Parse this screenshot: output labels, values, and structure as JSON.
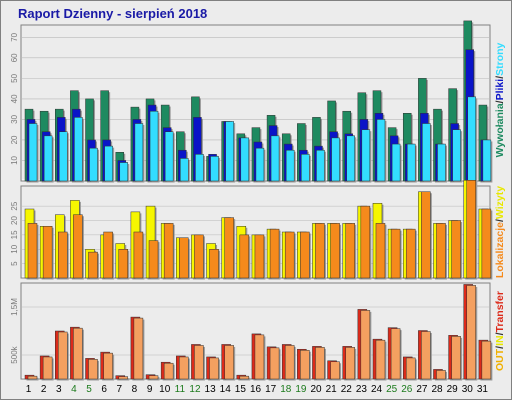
{
  "title": "Raport Dzienny -  sierpień 2018",
  "colors": {
    "wywolania": "#1e8a60",
    "pliki": "#0a14c8",
    "strony": "#33ddff",
    "wizyty": "#f6f600",
    "lokalizacje": "#f58a1c",
    "transfer_dark": "#dc2a1a",
    "transfer_light": "#f4a060",
    "in_color": "#f6a000",
    "out_color": "#f0b000"
  },
  "side_labels": {
    "top": [
      {
        "text": "Wywołania",
        "color": "#1e8a60"
      },
      {
        "text": "/",
        "color": "#333333"
      },
      {
        "text": "Pliki",
        "color": "#0a14c8"
      },
      {
        "text": "/",
        "color": "#333333"
      },
      {
        "text": "Strony",
        "color": "#33ddff"
      }
    ],
    "mid": [
      {
        "text": "Lokalizacje",
        "color": "#f58a1c"
      },
      {
        "text": "/",
        "color": "#333333"
      },
      {
        "text": "Wizyty",
        "color": "#e8e800"
      }
    ],
    "bot": [
      {
        "text": "OUT",
        "color": "#f0b000"
      },
      {
        "text": "/",
        "color": "#333333"
      },
      {
        "text": "IN",
        "color": "#e8e800"
      },
      {
        "text": "/",
        "color": "#333333"
      },
      {
        "text": "Transfer",
        "color": "#dc2a1a"
      }
    ]
  },
  "chart_data": [
    {
      "type": "bar",
      "categories": [
        "1",
        "2",
        "3",
        "4",
        "5",
        "6",
        "7",
        "8",
        "9",
        "10",
        "11",
        "12",
        "13",
        "14",
        "15",
        "16",
        "17",
        "18",
        "19",
        "20",
        "21",
        "22",
        "23",
        "24",
        "25",
        "26",
        "27",
        "28",
        "29",
        "30",
        "31"
      ],
      "weekend_days": [
        "4",
        "5",
        "11",
        "12",
        "18",
        "19",
        "25",
        "26"
      ],
      "y_ticks": [
        10,
        20,
        30,
        40,
        50,
        60,
        70
      ],
      "ylim": [
        0,
        76
      ],
      "series": [
        {
          "name": "Wywołania",
          "values": [
            35,
            34,
            35,
            44,
            40,
            44,
            14,
            36,
            40,
            37,
            24,
            41,
            12,
            29,
            23,
            26,
            32,
            23,
            28,
            31,
            39,
            34,
            43,
            44,
            26,
            33,
            50,
            35,
            45,
            78,
            37
          ]
        },
        {
          "name": "Pliki",
          "values": [
            30,
            24,
            31,
            35,
            20,
            20,
            10,
            30,
            37,
            26,
            15,
            31,
            13,
            29,
            21,
            19,
            27,
            18,
            15,
            17,
            24,
            23,
            30,
            33,
            22,
            18,
            33,
            18,
            28,
            64,
            20
          ]
        },
        {
          "name": "Strony",
          "values": [
            28,
            22,
            24,
            31,
            16,
            17,
            9,
            28,
            34,
            24,
            11,
            13,
            12,
            29,
            21,
            16,
            22,
            15,
            13,
            15,
            21,
            22,
            25,
            30,
            18,
            18,
            28,
            18,
            25,
            41,
            20
          ]
        }
      ]
    },
    {
      "type": "bar",
      "categories": [
        "1",
        "2",
        "3",
        "4",
        "5",
        "6",
        "7",
        "8",
        "9",
        "10",
        "11",
        "12",
        "13",
        "14",
        "15",
        "16",
        "17",
        "18",
        "19",
        "20",
        "21",
        "22",
        "23",
        "24",
        "25",
        "26",
        "27",
        "28",
        "29",
        "30",
        "31"
      ],
      "y_ticks": [
        5,
        10,
        15,
        20,
        25
      ],
      "ylim": [
        0,
        32
      ],
      "series": [
        {
          "name": "Wizyty",
          "values": [
            24,
            18,
            22,
            27,
            10,
            15,
            12,
            23,
            25,
            19,
            14,
            15,
            12,
            21,
            18,
            15,
            17,
            16,
            16,
            19,
            19,
            19,
            25,
            26,
            17,
            17,
            30,
            19,
            20,
            34,
            24
          ]
        },
        {
          "name": "Lokalizacje",
          "values": [
            19,
            18,
            16,
            22,
            9,
            16,
            10,
            16,
            13,
            19,
            14,
            15,
            10,
            21,
            15,
            15,
            17,
            16,
            16,
            19,
            19,
            19,
            25,
            19,
            17,
            17,
            30,
            19,
            20,
            34,
            24
          ]
        }
      ]
    },
    {
      "type": "bar",
      "categories": [
        "1",
        "2",
        "3",
        "4",
        "5",
        "6",
        "7",
        "8",
        "9",
        "10",
        "11",
        "12",
        "13",
        "14",
        "15",
        "16",
        "17",
        "18",
        "19",
        "20",
        "21",
        "22",
        "23",
        "24",
        "25",
        "26",
        "27",
        "28",
        "29",
        "30",
        "31"
      ],
      "y_tick_labels": [
        {
          "value": 500,
          "label": "500k"
        },
        {
          "value": 1500,
          "label": "1,5M"
        }
      ],
      "ylim": [
        0,
        2000
      ],
      "series": [
        {
          "name": "Transfer",
          "values": [
            80,
            480,
            1000,
            1080,
            430,
            560,
            70,
            1290,
            90,
            350,
            480,
            720,
            460,
            720,
            80,
            940,
            670,
            720,
            620,
            680,
            380,
            680,
            1450,
            830,
            1070,
            460,
            1010,
            200,
            910,
            1970,
            810
          ]
        }
      ]
    }
  ]
}
